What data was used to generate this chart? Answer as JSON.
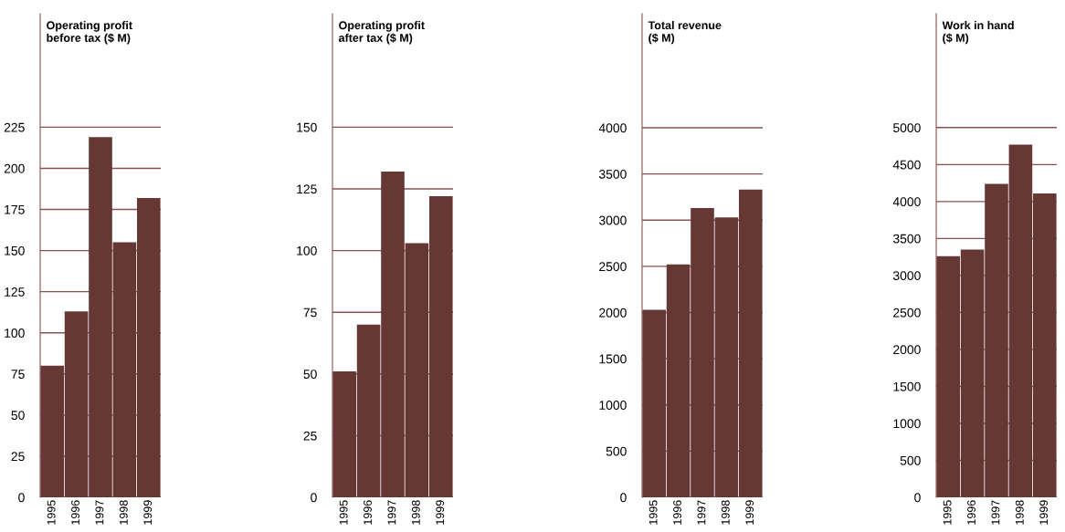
{
  "chart_data": [
    {
      "type": "bar",
      "title": "Operating profit\nbefore tax ($ M)",
      "categories": [
        "1995",
        "1996",
        "1997",
        "1998",
        "1999"
      ],
      "values": [
        80,
        113,
        219,
        155,
        182
      ],
      "color": "#663833",
      "ylim": [
        0,
        294
      ],
      "yticks": [
        0,
        25,
        50,
        75,
        100,
        125,
        150,
        175,
        200,
        225
      ],
      "grid": "y",
      "legend": false
    },
    {
      "type": "bar",
      "title": "Operating profit\nafter tax ($ M)",
      "categories": [
        "1995",
        "1996",
        "1997",
        "1998",
        "1999"
      ],
      "values": [
        51,
        70,
        132,
        103,
        122
      ],
      "color": "#663833",
      "ylim": [
        0,
        196
      ],
      "yticks": [
        0,
        25,
        50,
        75,
        100,
        125,
        150
      ],
      "grid": "y",
      "legend": false
    },
    {
      "type": "bar",
      "title": "Total revenue\n($ M)",
      "categories": [
        "1995",
        "1996",
        "1997",
        "1998",
        "1999"
      ],
      "values": [
        2030,
        2520,
        3130,
        3030,
        3330
      ],
      "color": "#663833",
      "ylim": [
        0,
        5235
      ],
      "yticks": [
        0,
        500,
        1000,
        1500,
        2000,
        2500,
        3000,
        3500,
        4000
      ],
      "grid": "y",
      "legend": false
    },
    {
      "type": "bar",
      "title": "Work in hand\n($ M)",
      "categories": [
        "1995",
        "1996",
        "1997",
        "1998",
        "1999"
      ],
      "values": [
        3260,
        3350,
        4240,
        4770,
        4110
      ],
      "color": "#663833",
      "ylim": [
        0,
        6540
      ],
      "yticks": [
        0,
        500,
        1000,
        1500,
        2000,
        2500,
        3000,
        3500,
        4000,
        4500,
        5000
      ],
      "grid": "y",
      "legend": false
    }
  ]
}
